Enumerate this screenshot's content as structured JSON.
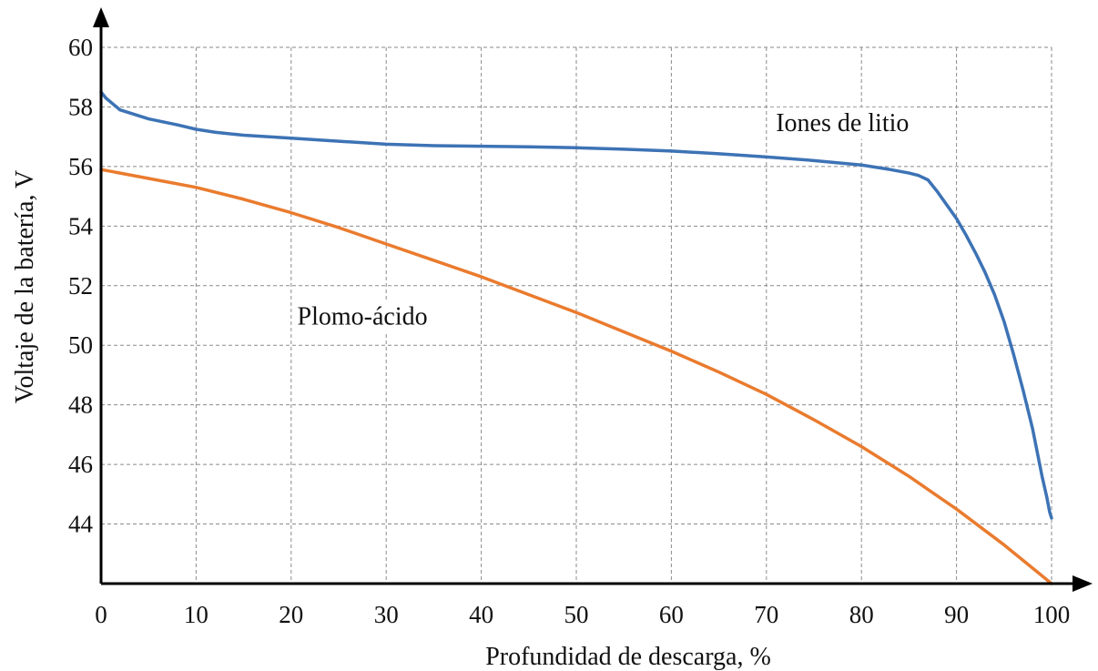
{
  "chart_data": {
    "type": "line",
    "xlabel": "Profundidad de descarga, %",
    "ylabel": "Voltaje de la batería, V",
    "xlim": [
      0,
      100
    ],
    "ylim": [
      42,
      60
    ],
    "x_ticks": [
      0,
      10,
      20,
      30,
      40,
      50,
      60,
      70,
      80,
      90,
      100
    ],
    "y_ticks": [
      44,
      46,
      48,
      50,
      52,
      54,
      56,
      58,
      60
    ],
    "grid": true,
    "series": [
      {
        "name": "Iones de litio",
        "color": "#3d73b5",
        "x": [
          0,
          0.5,
          2,
          5,
          8,
          10,
          12,
          15,
          20,
          25,
          30,
          35,
          40,
          45,
          50,
          55,
          60,
          65,
          70,
          75,
          80,
          83,
          85,
          86,
          87,
          88,
          89,
          90,
          91,
          92,
          93,
          94,
          95,
          96,
          97,
          98,
          98.5,
          99,
          99.5,
          99.8,
          100
        ],
        "y": [
          58.5,
          58.3,
          57.9,
          57.6,
          57.4,
          57.25,
          57.15,
          57.05,
          56.95,
          56.85,
          56.75,
          56.7,
          56.68,
          56.66,
          56.63,
          56.58,
          56.52,
          56.43,
          56.32,
          56.2,
          56.05,
          55.9,
          55.78,
          55.7,
          55.55,
          55.15,
          54.7,
          54.25,
          53.7,
          53.1,
          52.45,
          51.7,
          50.8,
          49.7,
          48.5,
          47.2,
          46.4,
          45.6,
          44.9,
          44.4,
          44.2
        ]
      },
      {
        "name": "Plomo-ácido",
        "color": "#ea7b2e",
        "x": [
          0,
          5,
          10,
          15,
          20,
          25,
          30,
          35,
          40,
          45,
          50,
          55,
          60,
          65,
          70,
          75,
          80,
          85,
          90,
          95,
          100
        ],
        "y": [
          55.9,
          55.6,
          55.3,
          54.9,
          54.45,
          53.95,
          53.4,
          52.85,
          52.3,
          51.7,
          51.1,
          50.45,
          49.8,
          49.1,
          48.35,
          47.5,
          46.6,
          45.6,
          44.5,
          43.3,
          42.0
        ]
      }
    ],
    "annotations": [
      {
        "text": "Iones de litio",
        "x": 78,
        "y": 57.5
      },
      {
        "text": "Plomo-ácido",
        "x": 27.5,
        "y": 51.0
      }
    ]
  }
}
